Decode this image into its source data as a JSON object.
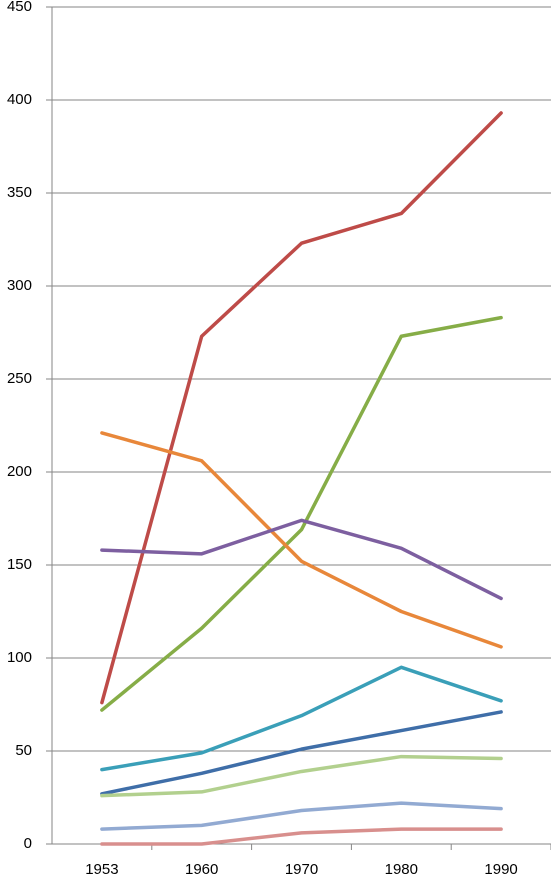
{
  "chart_data": {
    "type": "line",
    "categories": [
      "1953",
      "1960",
      "1970",
      "1980",
      "1990"
    ],
    "series": [
      {
        "color": "#be4b48",
        "values": [
          76,
          273,
          323,
          339,
          393
        ]
      },
      {
        "color": "#86ad47",
        "values": [
          72,
          116,
          169,
          273,
          283
        ]
      },
      {
        "color": "#e8873a",
        "values": [
          221,
          206,
          152,
          125,
          106
        ]
      },
      {
        "color": "#7d5fa0",
        "values": [
          158,
          156,
          174,
          159,
          132
        ]
      },
      {
        "color": "#3a9fb8",
        "values": [
          40,
          49,
          69,
          95,
          77
        ]
      },
      {
        "color": "#3f6ea8",
        "values": [
          27,
          38,
          51,
          61,
          71
        ]
      },
      {
        "color": "#b2d08e",
        "values": [
          26,
          28,
          39,
          47,
          46
        ]
      },
      {
        "color": "#92aad2",
        "values": [
          8,
          10,
          18,
          22,
          19
        ]
      },
      {
        "color": "#d88f8d",
        "values": [
          0,
          0,
          6,
          8,
          8
        ]
      }
    ],
    "ylim": [
      0,
      450
    ],
    "yticks": [
      0,
      50,
      100,
      150,
      200,
      250,
      300,
      350,
      400,
      450
    ],
    "grid": true
  }
}
